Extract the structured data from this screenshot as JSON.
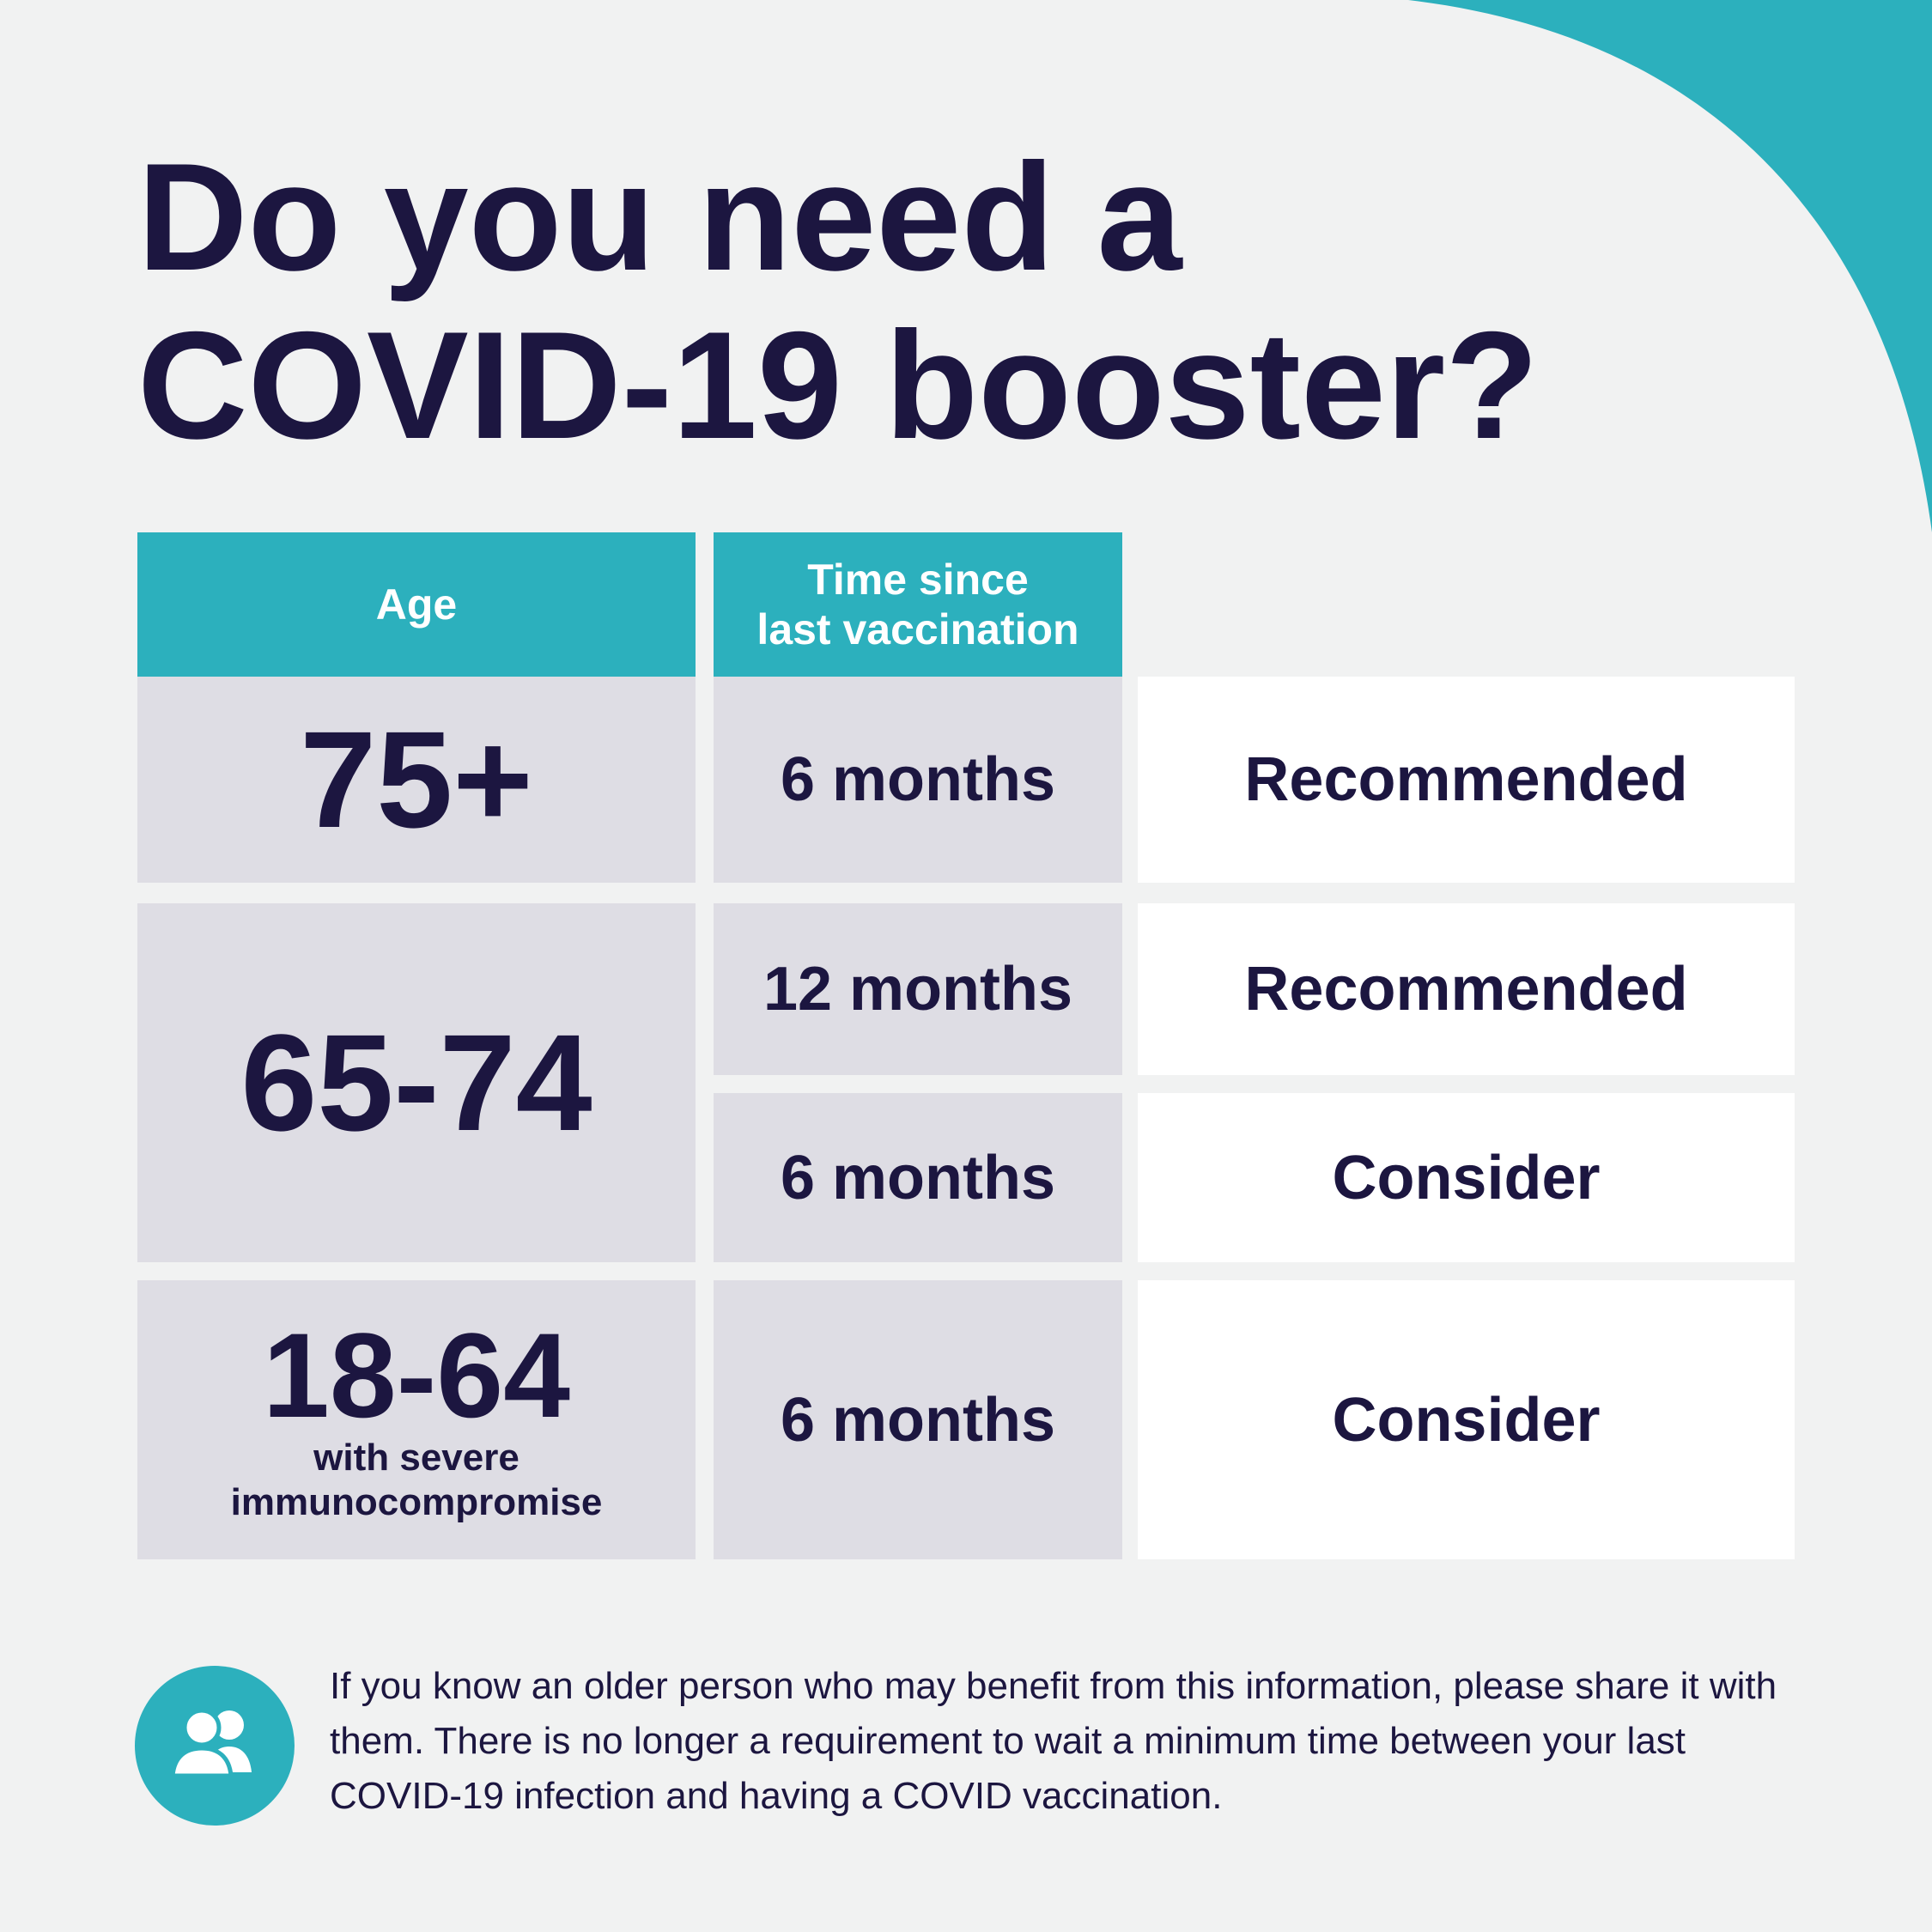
{
  "colors": {
    "background": "#f1f2f2",
    "navy": "#1c1640",
    "teal": "#2cb0bd",
    "grey_cell": "#dedde4",
    "white_cell": "#ffffff"
  },
  "title": {
    "line1": "Do you need a",
    "line2": "COVID-19 booster?"
  },
  "table": {
    "headers": {
      "age": "Age",
      "time_line1": "Time since",
      "time_line2": "last vaccination"
    },
    "rows": [
      {
        "age": "75+",
        "time": "6 months",
        "result": "Recommended"
      },
      {
        "age": "65-74",
        "time": "12 months",
        "result": "Recommended"
      },
      {
        "time": "6 months",
        "result": "Consider"
      },
      {
        "age": "18-64",
        "age_note_line1": "with severe",
        "age_note_line2": "immunocompromise",
        "time": "6 months",
        "result": "Consider"
      }
    ]
  },
  "footer": {
    "icon": "people-icon",
    "text": "If you know an older person who may benefit from this information, please share it with them. There is no longer a requirement to wait a minimum time between your last COVID-19 infection and having a COVID vaccination."
  }
}
